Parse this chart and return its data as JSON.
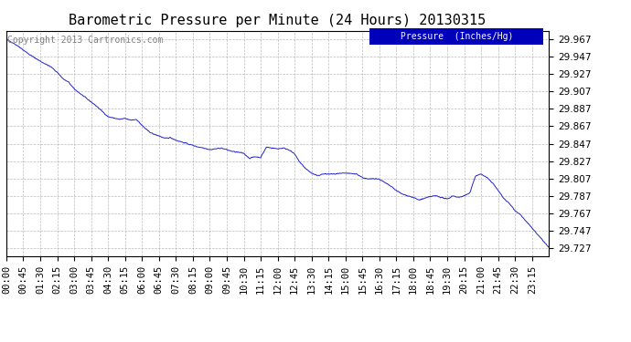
{
  "title": "Barometric Pressure per Minute (24 Hours) 20130315",
  "copyright": "Copyright 2013 Cartronics.com",
  "legend_label": "Pressure  (Inches/Hg)",
  "legend_bg": "#0000bb",
  "legend_text_color": "#ffffff",
  "line_color": "#2222cc",
  "bg_color": "#ffffff",
  "grid_color": "#aaaaaa",
  "ylim": [
    29.717,
    29.977
  ],
  "yticks": [
    29.727,
    29.747,
    29.767,
    29.787,
    29.807,
    29.827,
    29.847,
    29.867,
    29.887,
    29.907,
    29.927,
    29.947,
    29.967
  ],
  "xtick_labels": [
    "00:00",
    "00:45",
    "01:30",
    "02:15",
    "03:00",
    "03:45",
    "04:30",
    "05:15",
    "06:00",
    "06:45",
    "07:30",
    "08:15",
    "09:00",
    "09:45",
    "10:30",
    "11:15",
    "12:00",
    "12:45",
    "13:30",
    "14:15",
    "15:00",
    "15:45",
    "16:30",
    "17:15",
    "18:00",
    "18:45",
    "19:30",
    "20:15",
    "21:00",
    "21:45",
    "22:30",
    "23:15"
  ],
  "title_fontsize": 11,
  "tick_fontsize": 7.5,
  "copyright_fontsize": 7
}
